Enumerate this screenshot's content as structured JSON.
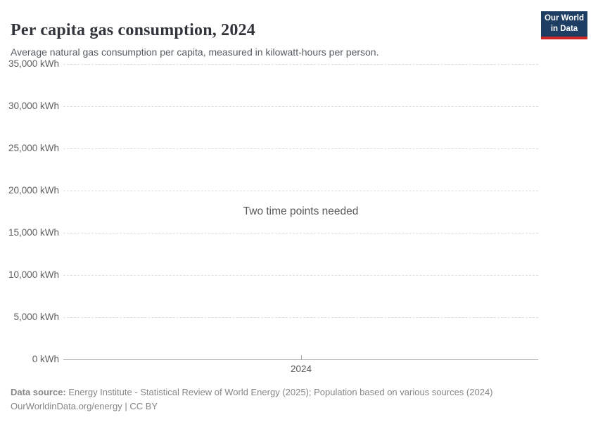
{
  "header": {
    "title": "Per capita gas consumption, 2024",
    "subtitle": "Average natural gas consumption per capita, measured in kilowatt-hours per person.",
    "logo": {
      "line1": "Our World",
      "line2": "in Data",
      "bg_color": "#1d3d63",
      "accent_color": "#cf2722"
    }
  },
  "chart_data": {
    "type": "line",
    "title": "Per capita gas consumption, 2024",
    "subtitle": "Average natural gas consumption per capita, measured in kilowatt-hours per person.",
    "series": [],
    "empty_message": "Two time points needed",
    "yticks": [
      "35,000 kWh",
      "30,000 kWh",
      "25,000 kWh",
      "20,000 kWh",
      "15,000 kWh",
      "10,000 kWh",
      "5,000 kWh",
      "0 kWh"
    ],
    "ytick_values": [
      35000,
      30000,
      25000,
      20000,
      15000,
      10000,
      5000,
      0
    ],
    "ylim": [
      0,
      35000
    ],
    "ylabel": "",
    "y_unit": "kWh",
    "xticks": [
      "2024"
    ],
    "xlabel": "",
    "grid": "horizontal-dashed",
    "legend": "none"
  },
  "footer": {
    "datasource_label": "Data source:",
    "datasource_text": "Energy Institute - Statistical Review of World Energy (2025); Population based on various sources (2024)",
    "attribution": "OurWorldinData.org/energy | CC BY"
  }
}
